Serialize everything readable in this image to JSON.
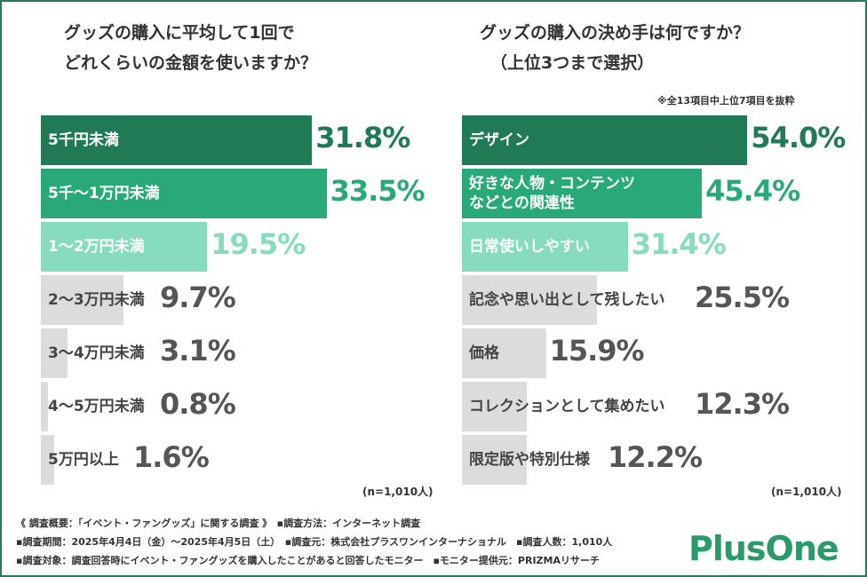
{
  "chart_data": [
    {
      "type": "bar",
      "orientation": "horizontal",
      "title_lines": [
        "グッズの購入に平均して1回で",
        "どれくらいの金額を使いますか？"
      ],
      "categories": [
        "5千円未満",
        "5千～1万円未満",
        "1～2万円未満",
        "2～3万円未満",
        "3～4万円未満",
        "4～5万円未満",
        "5万円以上"
      ],
      "values": [
        31.8,
        33.5,
        19.5,
        9.7,
        3.1,
        0.8,
        1.6
      ],
      "value_labels": [
        "31.8%",
        "33.5%",
        "19.5%",
        "9.7%",
        "3.1%",
        "0.8%",
        "1.6%"
      ],
      "bar_colors": [
        "#1f7a55",
        "#2aa978",
        "#86dcbc",
        "#dcdcdc",
        "#dcdcdc",
        "#dcdcdc",
        "#dcdcdc"
      ],
      "label_colors": [
        "#ffffff",
        "#ffffff",
        "#ffffff",
        "#444444",
        "#444444",
        "#444444",
        "#444444"
      ],
      "value_colors": [
        "#1f7a55",
        "#2aa978",
        "#86dcbc",
        "#555555",
        "#555555",
        "#555555",
        "#555555"
      ],
      "sample_note": "(n=1,010人)",
      "xlim": [
        0,
        100
      ]
    },
    {
      "type": "bar",
      "orientation": "horizontal",
      "title_lines": [
        "グッズの購入の決め手は何ですか？",
        "（上位3つまで選択）"
      ],
      "subnote": "※全13項目中上位7項目を抜粋",
      "categories": [
        "デザイン",
        "好きな人物・コンテンツ\nなどとの関連性",
        "日常使いしやすい",
        "記念や思い出として残したい",
        "価格",
        "コレクションとして集めたい",
        "限定版や特別仕様"
      ],
      "category_lines": [
        [
          "デザイン"
        ],
        [
          "好きな人物・コンテンツ",
          "などとの関連性"
        ],
        [
          "日常使いしやすい"
        ],
        [
          "記念や思い出として残したい"
        ],
        [
          "価格"
        ],
        [
          "コレクションとして集めたい"
        ],
        [
          "限定版や特別仕様"
        ]
      ],
      "values": [
        54.0,
        45.4,
        31.4,
        25.5,
        15.9,
        12.3,
        12.2
      ],
      "value_labels": [
        "54.0%",
        "45.4%",
        "31.4%",
        "25.5%",
        "15.9%",
        "12.3%",
        "12.2%"
      ],
      "bar_colors": [
        "#1f7a55",
        "#2aa978",
        "#86dcbc",
        "#dcdcdc",
        "#dcdcdc",
        "#dcdcdc",
        "#dcdcdc"
      ],
      "label_colors": [
        "#ffffff",
        "#ffffff",
        "#ffffff",
        "#444444",
        "#444444",
        "#444444",
        "#444444"
      ],
      "value_colors": [
        "#1f7a55",
        "#2aa978",
        "#86dcbc",
        "#555555",
        "#555555",
        "#555555",
        "#555555"
      ],
      "sample_note": "(n=1,010人)",
      "xlim": [
        0,
        100
      ]
    }
  ],
  "footer": {
    "line1": "《 調査概要：「イベント・ファングッズ」に関する調査 》　▪調査方法：インターネット調査",
    "line2": "▪調査期間：2025年4月4日（金）～2025年4月5日（土）　▪調査元：株式会社プラスワンインターナショナル　▪調査人数：1,010人",
    "line3": "▪調査対象：調査回答時にイベント・ファングッズを購入したことがあると回答したモニター　▪モニター提供元：PRIZMAリサーチ"
  },
  "logo": {
    "text": "PlusOne"
  }
}
